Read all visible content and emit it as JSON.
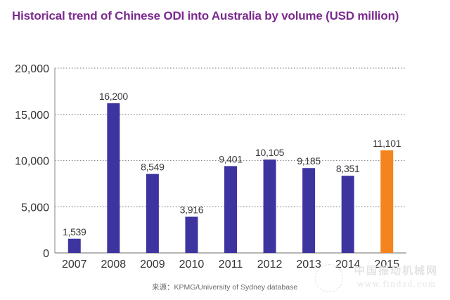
{
  "chart_data": {
    "type": "bar",
    "title": "Historical trend of Chinese ODI into Australia by volume (USD million)",
    "xlabel": "",
    "ylabel": "",
    "categories": [
      "2007",
      "2008",
      "2009",
      "2010",
      "2011",
      "2012",
      "2013",
      "2014",
      "2015"
    ],
    "values": [
      1539,
      16200,
      8549,
      3916,
      9401,
      10105,
      9185,
      8351,
      11101
    ],
    "data_labels": [
      "1,539",
      "16,200",
      "8,549",
      "3,916",
      "9,401",
      "10,105",
      "9,185",
      "8,351",
      "11,101"
    ],
    "ylim": [
      0,
      20000
    ],
    "yticks": [
      0,
      5000,
      10000,
      15000,
      20000
    ],
    "ytick_labels": [
      "0",
      "5,000",
      "10,000",
      "15,000",
      "20,000"
    ],
    "grid": "horizontal dotted",
    "legend": "none",
    "colors": {
      "default_bar": "#3d34a0",
      "highlight_bar": "#f5841f",
      "highlight_category": "2015",
      "title": "#7b2a8e"
    },
    "source": "来源：KPMG/University of Sydney database"
  },
  "watermark": {
    "text_cn": "中国振动机械网",
    "url": "www.findzd.com"
  }
}
